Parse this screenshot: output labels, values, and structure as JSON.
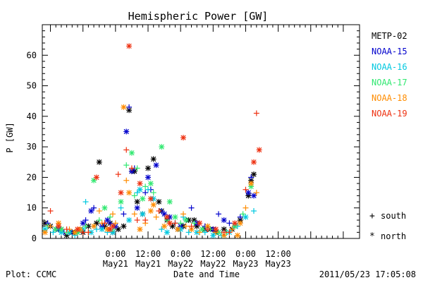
{
  "chart_data": {
    "type": "scatter",
    "title": "Hemispheric Power [GW]",
    "xlabel": "Date and Time",
    "ylabel": "P [GW]",
    "ylim": [
      0,
      70
    ],
    "yticks": [
      0,
      10,
      20,
      30,
      40,
      50,
      60
    ],
    "xlim": [
      -27,
      90
    ],
    "x_unit": "hours from 2011-05-21 00:00 UT",
    "xticks": [
      {
        "x": 0,
        "time": "0:00",
        "date": "May21"
      },
      {
        "x": 12,
        "time": "12:00",
        "date": "May21"
      },
      {
        "x": 24,
        "time": "0:00",
        "date": "May22"
      },
      {
        "x": 36,
        "time": "12:00",
        "date": "May22"
      },
      {
        "x": 48,
        "time": "0:00",
        "date": "May23"
      },
      {
        "x": 60,
        "time": "12:00",
        "date": "May23"
      }
    ],
    "legend": "right",
    "series": [
      {
        "name": "METP-02",
        "color": "#000000",
        "marker": "north",
        "points": [
          [
            -26,
            5
          ],
          [
            -24,
            4
          ],
          [
            -22,
            3
          ],
          [
            -20,
            3
          ],
          [
            -16,
            2
          ],
          [
            -12,
            2
          ],
          [
            -10,
            4
          ],
          [
            -7,
            5
          ],
          [
            -6,
            25
          ],
          [
            -4,
            4
          ],
          [
            -2,
            5
          ],
          [
            1,
            3
          ],
          [
            3,
            4
          ],
          [
            5,
            42
          ],
          [
            6,
            22
          ],
          [
            7,
            22
          ],
          [
            8,
            12
          ],
          [
            10,
            8
          ],
          [
            12,
            23
          ],
          [
            14,
            26
          ],
          [
            16,
            12
          ],
          [
            17,
            9
          ],
          [
            19,
            6
          ],
          [
            21,
            4
          ],
          [
            23,
            3
          ],
          [
            25,
            4
          ],
          [
            27,
            6
          ],
          [
            30,
            4
          ],
          [
            33,
            3
          ],
          [
            35,
            3
          ],
          [
            37,
            2
          ],
          [
            40,
            3
          ],
          [
            43,
            3
          ],
          [
            46,
            6
          ],
          [
            49,
            14
          ],
          [
            50,
            19
          ],
          [
            51,
            21
          ],
          [
            -18,
            1
          ],
          [
            -14,
            2
          ],
          [
            -1,
            2
          ],
          [
            29,
            6
          ]
        ]
      },
      {
        "name": "NOAA-15",
        "color": "#0000cc",
        "marker": "mixed",
        "points": [
          [
            -25,
            5
          ],
          [
            -21,
            3
          ],
          [
            -16,
            2
          ],
          [
            -12,
            5
          ],
          [
            -11,
            6
          ],
          [
            -9,
            9
          ],
          [
            -8,
            10
          ],
          [
            -5,
            4
          ],
          [
            -2,
            5
          ],
          [
            0,
            4
          ],
          [
            3,
            8
          ],
          [
            4,
            35
          ],
          [
            5,
            43
          ],
          [
            6,
            22
          ],
          [
            7,
            23
          ],
          [
            8,
            10
          ],
          [
            11,
            15
          ],
          [
            12,
            20
          ],
          [
            13,
            16
          ],
          [
            15,
            24
          ],
          [
            17,
            9
          ],
          [
            20,
            7
          ],
          [
            22,
            5
          ],
          [
            24,
            4
          ],
          [
            26,
            6
          ],
          [
            30,
            5
          ],
          [
            33,
            4
          ],
          [
            36,
            3
          ],
          [
            38,
            8
          ],
          [
            40,
            6
          ],
          [
            42,
            5
          ],
          [
            44,
            4
          ],
          [
            46,
            7
          ],
          [
            49,
            15
          ],
          [
            50,
            20
          ],
          [
            51,
            14
          ],
          [
            -19,
            2
          ],
          [
            18,
            8
          ],
          [
            28,
            10
          ],
          [
            -3,
            6
          ]
        ]
      },
      {
        "name": "NOAA-16",
        "color": "#00c8e0",
        "marker": "mixed",
        "points": [
          [
            -26,
            3
          ],
          [
            -23,
            2
          ],
          [
            -20,
            2
          ],
          [
            -15,
            1
          ],
          [
            -12,
            3
          ],
          [
            -11,
            12
          ],
          [
            -9,
            2
          ],
          [
            -7,
            3
          ],
          [
            -5,
            3
          ],
          [
            -3,
            2
          ],
          [
            -1,
            2
          ],
          [
            2,
            10
          ],
          [
            5,
            6
          ],
          [
            8,
            15
          ],
          [
            10,
            8
          ],
          [
            12,
            16
          ],
          [
            14,
            13
          ],
          [
            17,
            3
          ],
          [
            19,
            2
          ],
          [
            22,
            5
          ],
          [
            24,
            3
          ],
          [
            27,
            2
          ],
          [
            30,
            2
          ],
          [
            33,
            2
          ],
          [
            36,
            1
          ],
          [
            39,
            1
          ],
          [
            42,
            2
          ],
          [
            45,
            4
          ],
          [
            48,
            7
          ],
          [
            51,
            9
          ],
          [
            9,
            16
          ],
          [
            25,
            7
          ],
          [
            -17,
            2
          ],
          [
            -8,
            4
          ],
          [
            40,
            1
          ]
        ]
      },
      {
        "name": "NOAA-17",
        "color": "#30e870",
        "marker": "mixed",
        "points": [
          [
            -25,
            4
          ],
          [
            -22,
            3
          ],
          [
            -18,
            2
          ],
          [
            -14,
            2
          ],
          [
            -11,
            4
          ],
          [
            -8,
            19
          ],
          [
            -6,
            6
          ],
          [
            -4,
            10
          ],
          [
            -1,
            3
          ],
          [
            2,
            12
          ],
          [
            4,
            24
          ],
          [
            6,
            28
          ],
          [
            8,
            23
          ],
          [
            10,
            13
          ],
          [
            11,
            17
          ],
          [
            13,
            18
          ],
          [
            14,
            15
          ],
          [
            17,
            30
          ],
          [
            19,
            6
          ],
          [
            22,
            7
          ],
          [
            24,
            5
          ],
          [
            26,
            6
          ],
          [
            29,
            5
          ],
          [
            32,
            3
          ],
          [
            35,
            3
          ],
          [
            38,
            2
          ],
          [
            41,
            2
          ],
          [
            44,
            4
          ],
          [
            47,
            8
          ],
          [
            50,
            17
          ],
          [
            7,
            14
          ],
          [
            -20,
            3
          ],
          [
            -2,
            7
          ],
          [
            20,
            12
          ],
          [
            34,
            4
          ]
        ]
      },
      {
        "name": "NOAA-18",
        "color": "#ff8c00",
        "marker": "mixed",
        "points": [
          [
            -26,
            2
          ],
          [
            -24,
            4
          ],
          [
            -21,
            5
          ],
          [
            -17,
            3
          ],
          [
            -13,
            3
          ],
          [
            -10,
            2
          ],
          [
            -8,
            4
          ],
          [
            -5,
            5
          ],
          [
            -3,
            3
          ],
          [
            0,
            5
          ],
          [
            3,
            43
          ],
          [
            4,
            19
          ],
          [
            5,
            15
          ],
          [
            7,
            8
          ],
          [
            9,
            3
          ],
          [
            11,
            5
          ],
          [
            13,
            9
          ],
          [
            15,
            7
          ],
          [
            18,
            4
          ],
          [
            20,
            5
          ],
          [
            23,
            3
          ],
          [
            25,
            8
          ],
          [
            28,
            3
          ],
          [
            31,
            2
          ],
          [
            34,
            4
          ],
          [
            37,
            2
          ],
          [
            40,
            1
          ],
          [
            43,
            3
          ],
          [
            46,
            5
          ],
          [
            48,
            10
          ],
          [
            50,
            18
          ],
          [
            52,
            15
          ],
          [
            -15,
            2
          ],
          [
            -6,
            9
          ],
          [
            14,
            11
          ],
          [
            26,
            4
          ],
          [
            45,
            1
          ],
          [
            -1,
            8
          ]
        ]
      },
      {
        "name": "NOAA-19",
        "color": "#ee3010",
        "marker": "mixed",
        "points": [
          [
            -24,
            9
          ],
          [
            -21,
            4
          ],
          [
            -18,
            3
          ],
          [
            -14,
            3
          ],
          [
            -10,
            2
          ],
          [
            -7,
            20
          ],
          [
            -4,
            5
          ],
          [
            -2,
            3
          ],
          [
            1,
            21
          ],
          [
            2,
            15
          ],
          [
            4,
            29
          ],
          [
            5,
            63
          ],
          [
            6,
            23
          ],
          [
            9,
            18
          ],
          [
            11,
            6
          ],
          [
            13,
            13
          ],
          [
            16,
            9
          ],
          [
            19,
            7
          ],
          [
            22,
            5
          ],
          [
            25,
            33
          ],
          [
            28,
            4
          ],
          [
            31,
            5
          ],
          [
            34,
            3
          ],
          [
            37,
            3
          ],
          [
            40,
            2
          ],
          [
            44,
            5
          ],
          [
            48,
            16
          ],
          [
            51,
            25
          ],
          [
            52,
            41
          ],
          [
            53,
            29
          ],
          [
            -12,
            2
          ],
          [
            -1,
            4
          ],
          [
            8,
            6
          ],
          [
            20,
            5
          ],
          [
            42,
            2
          ]
        ]
      }
    ],
    "legend_markers": [
      {
        "symbol": "+",
        "label": "south"
      },
      {
        "symbol": "*",
        "label": "north"
      }
    ],
    "footer_left": "Plot: CCMC",
    "footer_right": "2011/05/23 17:05:08"
  }
}
